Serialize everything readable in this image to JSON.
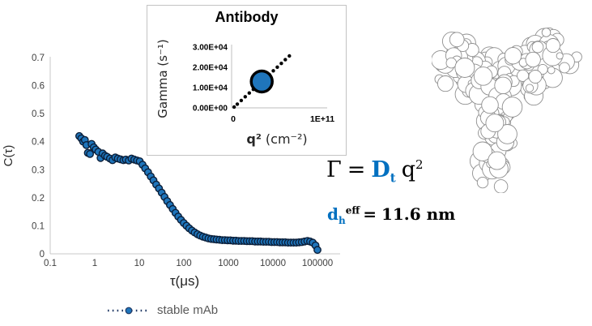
{
  "colors": {
    "marker_fill": "#1f75bb",
    "marker_edge": "#0b1f3a",
    "dotted_line": "#1f3864",
    "axis_line": "#c9c9c9",
    "tick_text": "#3f3f3f",
    "accent_blue": "#0070c0",
    "legend_text": "#595959",
    "antibody_outline": "#8f8f8f"
  },
  "chart_data": [
    {
      "type": "scatter",
      "title": "",
      "xlabel": "τ(μs)",
      "ylabel": "C(τ)",
      "x_scale": "log",
      "xlim": [
        0.1,
        100000
      ],
      "ylim": [
        0,
        0.7
      ],
      "x_ticks": [
        "0.1",
        "1",
        "10",
        "100",
        "1000",
        "10000",
        "100000"
      ],
      "y_ticks": [
        "0",
        "0.1",
        "0.2",
        "0.3",
        "0.4",
        "0.5",
        "0.6",
        "0.7"
      ],
      "legend": {
        "label": "stable mAb",
        "position": "bottom"
      },
      "series": [
        {
          "name": "stable mAb",
          "line_style": "dotted",
          "points": [
            [
              0.45,
              0.42
            ],
            [
              0.5,
              0.412
            ],
            [
              0.55,
              0.4
            ],
            [
              0.6,
              0.406
            ],
            [
              0.65,
              0.388
            ],
            [
              0.7,
              0.36
            ],
            [
              0.78,
              0.356
            ],
            [
              0.85,
              0.392
            ],
            [
              0.95,
              0.38
            ],
            [
              1.05,
              0.372
            ],
            [
              1.2,
              0.364
            ],
            [
              1.35,
              0.342
            ],
            [
              1.5,
              0.358
            ],
            [
              1.7,
              0.35
            ],
            [
              1.9,
              0.346
            ],
            [
              2.2,
              0.34
            ],
            [
              2.5,
              0.334
            ],
            [
              2.9,
              0.344
            ],
            [
              3.3,
              0.34
            ],
            [
              3.8,
              0.337
            ],
            [
              4.4,
              0.334
            ],
            [
              5.0,
              0.336
            ],
            [
              5.8,
              0.333
            ],
            [
              6.7,
              0.34
            ],
            [
              7.7,
              0.336
            ],
            [
              8.9,
              0.333
            ],
            [
              10.2,
              0.33
            ],
            [
              11.8,
              0.318
            ],
            [
              13.6,
              0.305
            ],
            [
              15.7,
              0.291
            ],
            [
              18.1,
              0.276
            ],
            [
              20.8,
              0.262
            ],
            [
              24,
              0.247
            ],
            [
              27.7,
              0.233
            ],
            [
              31.9,
              0.218
            ],
            [
              36.8,
              0.203
            ],
            [
              42.4,
              0.188
            ],
            [
              48.9,
              0.174
            ],
            [
              56.3,
              0.16
            ],
            [
              64.9,
              0.146
            ],
            [
              74.8,
              0.133
            ],
            [
              86.2,
              0.121
            ],
            [
              99.4,
              0.11
            ],
            [
              115,
              0.1
            ],
            [
              132,
              0.091
            ],
            [
              152,
              0.083
            ],
            [
              175,
              0.076
            ],
            [
              202,
              0.07
            ],
            [
              233,
              0.065
            ],
            [
              269,
              0.061
            ],
            [
              310,
              0.058
            ],
            [
              357,
              0.055
            ],
            [
              411,
              0.053
            ],
            [
              474,
              0.052
            ],
            [
              546,
              0.051
            ],
            [
              630,
              0.05
            ],
            [
              726,
              0.049
            ],
            [
              837,
              0.049
            ],
            [
              964,
              0.048
            ],
            [
              1111,
              0.048
            ],
            [
              1281,
              0.047
            ],
            [
              1476,
              0.047
            ],
            [
              1701,
              0.046
            ],
            [
              1961,
              0.046
            ],
            [
              2260,
              0.046
            ],
            [
              2605,
              0.045
            ],
            [
              3002,
              0.045
            ],
            [
              3460,
              0.045
            ],
            [
              3988,
              0.044
            ],
            [
              4596,
              0.044
            ],
            [
              5297,
              0.044
            ],
            [
              6105,
              0.043
            ],
            [
              7036,
              0.043
            ],
            [
              8109,
              0.043
            ],
            [
              9346,
              0.042
            ],
            [
              10772,
              0.042
            ],
            [
              12415,
              0.042
            ],
            [
              14308,
              0.041
            ],
            [
              16491,
              0.041
            ],
            [
              19006,
              0.041
            ],
            [
              21905,
              0.04
            ],
            [
              25246,
              0.04
            ],
            [
              29097,
              0.04
            ],
            [
              33535,
              0.04
            ],
            [
              38650,
              0.041
            ],
            [
              44545,
              0.042
            ],
            [
              51339,
              0.044
            ],
            [
              59170,
              0.046
            ],
            [
              68195,
              0.044
            ],
            [
              78596,
              0.04
            ],
            [
              90584,
              0.03
            ],
            [
              100000,
              0.014
            ]
          ]
        }
      ]
    },
    {
      "type": "scatter",
      "title": "Antibody",
      "xlabel_q": "q²",
      "xlabel_units": "(cm⁻²)",
      "ylabel": "Gamma (s⁻¹)",
      "xlim": [
        0,
        110000000000.0
      ],
      "ylim": [
        0,
        30000
      ],
      "x_ticks": [
        "0",
        "1E+11"
      ],
      "y_ticks": [
        "0.00E+00",
        "1.00E+04",
        "2.00E+04",
        "3.00E+04"
      ],
      "fit_points": [
        [
          1000000000.0,
          400
        ],
        [
          4500000000.0,
          1830
        ],
        [
          9000000000.0,
          3650
        ],
        [
          13500000000.0,
          5480
        ],
        [
          18000000000.0,
          7310
        ],
        [
          22500000000.0,
          9140
        ],
        [
          27000000000.0,
          10960
        ],
        [
          31500000000.0,
          12790
        ],
        [
          36000000000.0,
          14620
        ],
        [
          40500000000.0,
          16440
        ],
        [
          45000000000.0,
          18270
        ],
        [
          49500000000.0,
          20100
        ],
        [
          54000000000.0,
          21920
        ],
        [
          58500000000.0,
          23750
        ],
        [
          63000000000.0,
          25580
        ]
      ],
      "highlight_point": {
        "x": 32000000000.0,
        "y": 13000
      }
    }
  ],
  "equation": {
    "gamma": "Γ",
    "equals": "=",
    "d": "D",
    "d_sub": "t",
    "q": "q",
    "q_sup": "2"
  },
  "dh": {
    "symbol": "d",
    "sub": "h",
    "sup": "eff",
    "equals": "=",
    "value": "11.6 nm"
  },
  "antibody_model": {
    "name": "antibody-structure-image",
    "description": "space-filling outline model of Y-shaped antibody"
  }
}
